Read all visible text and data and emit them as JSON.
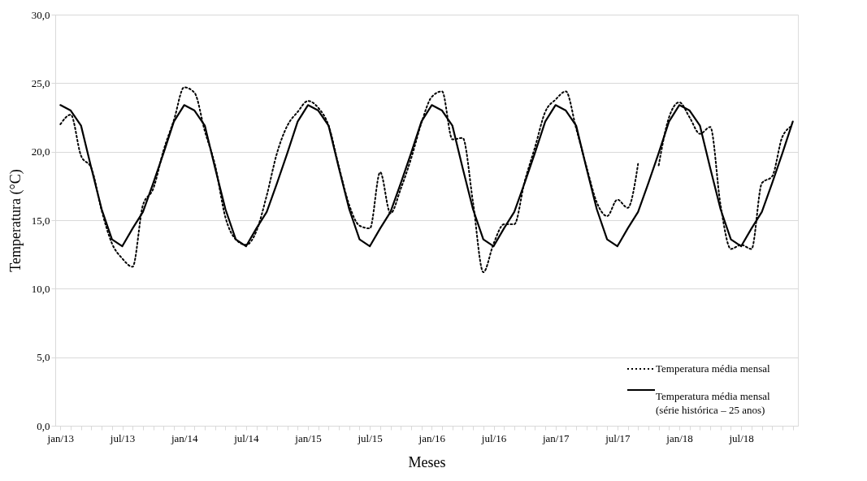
{
  "chart_data": {
    "type": "line",
    "xlabel": "Meses",
    "ylabel": "Temperatura (°C)",
    "categories": [
      "jan/13",
      null,
      null,
      null,
      null,
      null,
      "jul/13",
      null,
      null,
      null,
      null,
      null,
      "jan/14",
      null,
      null,
      null,
      null,
      null,
      "jul/14",
      null,
      null,
      null,
      null,
      null,
      "jan/15",
      null,
      null,
      null,
      null,
      null,
      "jul/15",
      null,
      null,
      null,
      null,
      null,
      "jan/16",
      null,
      null,
      null,
      null,
      null,
      "jul/16",
      null,
      null,
      null,
      null,
      null,
      "jan/17",
      null,
      null,
      null,
      null,
      null,
      "jul/17",
      null,
      null,
      null,
      null,
      null,
      "jan/18",
      null,
      null,
      null,
      null,
      null,
      "jul/18",
      null,
      null,
      null,
      null,
      null
    ],
    "series": [
      {
        "name": "Temperatura média mensal",
        "color": "#000000",
        "line_style": "dotted",
        "values": [
          22.0,
          22.7,
          19.7,
          18.8,
          15.7,
          13.3,
          12.2,
          11.6,
          16.1,
          17.3,
          20.1,
          22.3,
          24.7,
          24.3,
          21.5,
          19.0,
          15.2,
          13.6,
          13.2,
          14.2,
          16.8,
          19.9,
          21.9,
          22.9,
          23.7,
          23.2,
          21.9,
          18.9,
          16.1,
          14.6,
          14.4,
          18.5,
          15.5,
          17.3,
          19.5,
          22.1,
          24.0,
          24.4,
          20.9,
          21.0,
          16.3,
          11.2,
          13.3,
          14.7,
          14.7,
          17.8,
          20.3,
          22.9,
          23.8,
          24.4,
          21.7,
          18.9,
          16.3,
          15.3,
          16.5,
          15.9,
          19.1,
          null,
          19.0,
          22.5,
          23.6,
          22.5,
          21.3,
          21.8,
          16.1,
          12.9,
          13.2,
          12.9,
          17.7,
          18.2,
          21.1,
          21.9
        ]
      },
      {
        "name": "Temperatura média mensal\n(série histórica – 25 anos)",
        "color": "#000000",
        "line_style": "solid",
        "values": [
          23.4,
          23.0,
          21.9,
          18.8,
          15.8,
          13.6,
          13.1,
          14.4,
          15.6,
          17.7,
          19.9,
          22.2,
          23.4,
          23.0,
          21.9,
          18.8,
          15.8,
          13.6,
          13.1,
          14.4,
          15.6,
          17.7,
          19.9,
          22.2,
          23.4,
          23.0,
          21.9,
          18.8,
          15.8,
          13.6,
          13.1,
          14.4,
          15.6,
          17.7,
          19.9,
          22.2,
          23.4,
          23.0,
          21.9,
          18.8,
          15.8,
          13.6,
          13.1,
          14.4,
          15.6,
          17.7,
          19.9,
          22.2,
          23.4,
          23.0,
          21.9,
          18.8,
          15.8,
          13.6,
          13.1,
          14.4,
          15.6,
          17.7,
          19.9,
          22.2,
          23.4,
          23.0,
          21.9,
          18.8,
          15.8,
          13.6,
          13.1,
          14.4,
          15.6,
          17.7,
          19.9,
          22.2
        ]
      }
    ],
    "ylim": [
      0,
      30
    ],
    "yticks": [
      {
        "value": 0,
        "label": "0,0"
      },
      {
        "value": 5,
        "label": "5,0"
      },
      {
        "value": 10,
        "label": "10,0"
      },
      {
        "value": 15,
        "label": "15,0"
      },
      {
        "value": 20,
        "label": "20,0"
      },
      {
        "value": 25,
        "label": "25,0"
      },
      {
        "value": 30,
        "label": "30,0"
      }
    ],
    "grid": "y",
    "legend": "bottom right",
    "marker": "none"
  }
}
